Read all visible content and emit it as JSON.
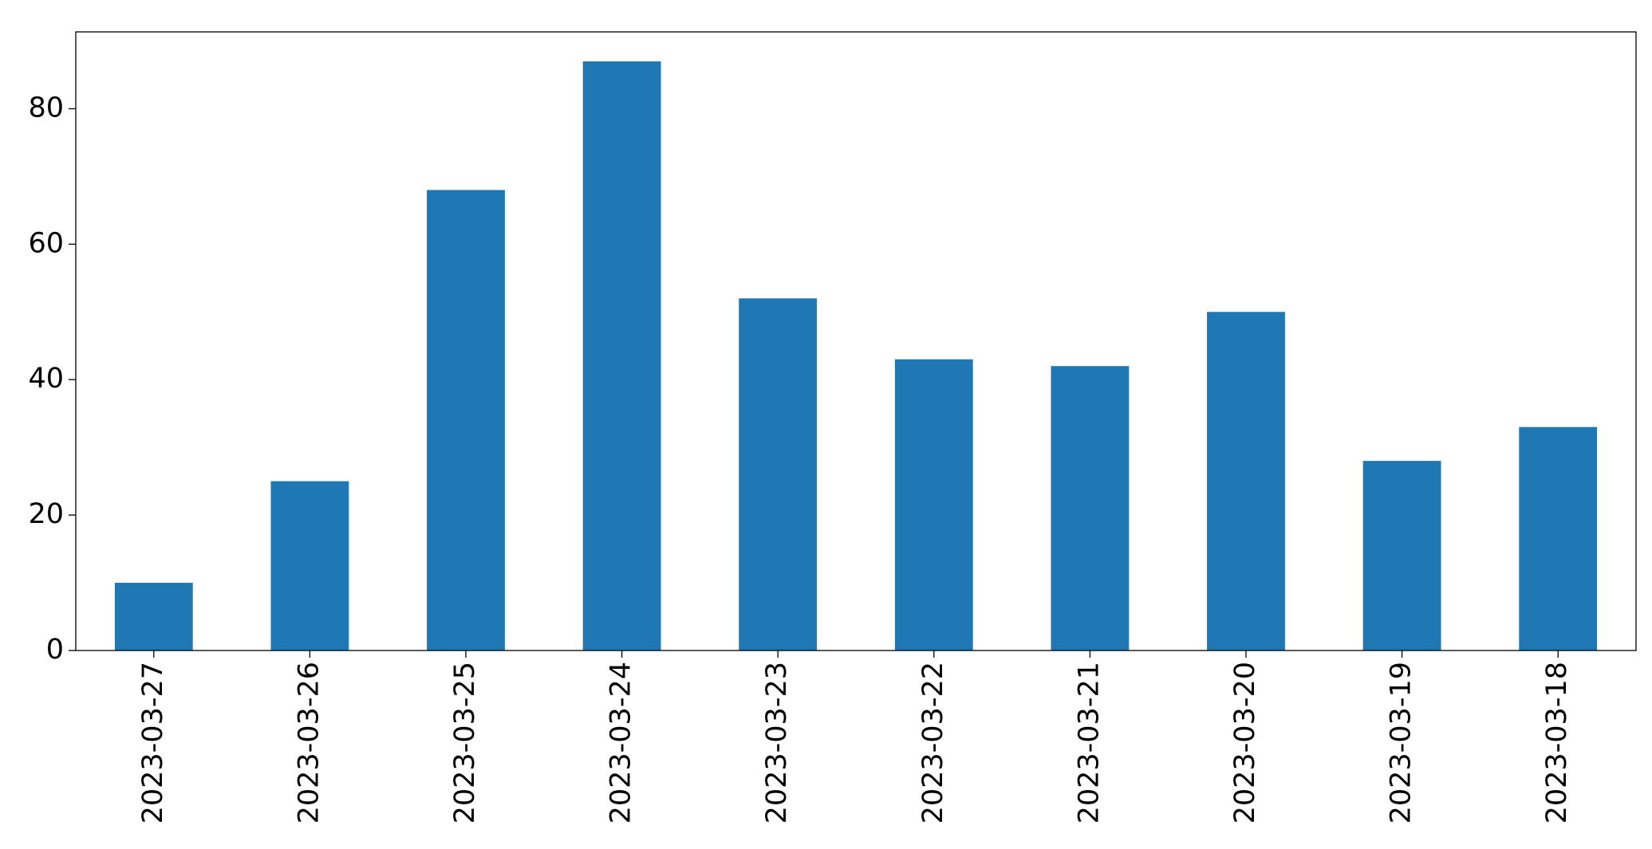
{
  "chart_data": {
    "type": "bar",
    "categories": [
      "2023-03-27",
      "2023-03-26",
      "2023-03-25",
      "2023-03-24",
      "2023-03-23",
      "2023-03-22",
      "2023-03-21",
      "2023-03-20",
      "2023-03-19",
      "2023-03-18"
    ],
    "values": [
      10,
      25,
      68,
      87,
      52,
      43,
      42,
      50,
      28,
      33
    ],
    "color": "#1f77b4",
    "ylim": [
      0,
      91.35
    ],
    "yticks": [
      0,
      20,
      40,
      60,
      80
    ],
    "grid": false
  }
}
